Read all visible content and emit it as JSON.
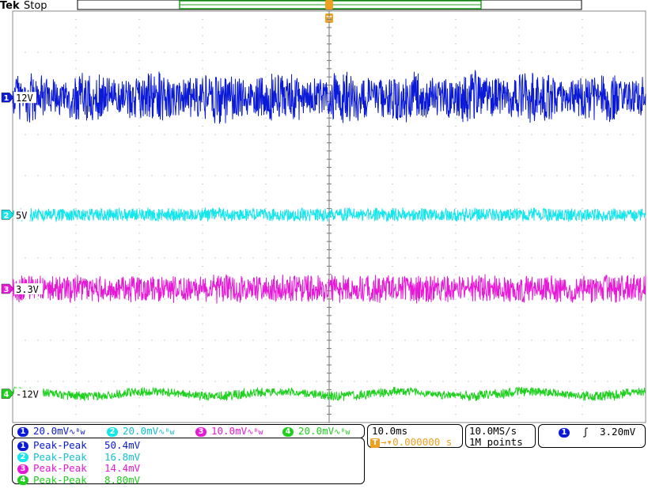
{
  "header": {
    "brand": "Tek",
    "status": "Stop"
  },
  "colors": {
    "ch1": "#0a1ad6",
    "ch2": "#14e6ec",
    "ch3": "#e619d7",
    "ch4": "#1fd01f",
    "trigger": "#f0a020"
  },
  "chart_data": {
    "type": "line",
    "title": "",
    "x_unit": "s",
    "xlim": [
      -0.05,
      0.05
    ],
    "grid": true,
    "series": [
      {
        "name": "12V",
        "channel": 1,
        "color": "#0a1ad6",
        "offset_div": 2.1,
        "volts_per_div": 0.02,
        "peak_to_peak_mV": 50.4,
        "ripple_hz": 100,
        "envelope_div": [
          1.0,
          1.4
        ]
      },
      {
        "name": "5V",
        "channel": 2,
        "color": "#14e6ec",
        "offset_div": 4.95,
        "volts_per_div": 0.02,
        "peak_to_peak_mV": 16.8,
        "ripple_hz": 0,
        "envelope_div": [
          0.36,
          0.36
        ]
      },
      {
        "name": "3.3V",
        "channel": 3,
        "color": "#e619d7",
        "offset_div": 6.75,
        "volts_per_div": 0.01,
        "peak_to_peak_mV": 14.4,
        "ripple_hz": 0,
        "envelope_div": [
          0.72,
          0.72
        ]
      },
      {
        "name": "-12V",
        "channel": 4,
        "color": "#1fd01f",
        "offset_div": 9.3,
        "volts_per_div": 0.02,
        "peak_to_peak_mV": 8.8,
        "ripple_hz": 50,
        "envelope_div": [
          0.22,
          0.28
        ]
      }
    ]
  },
  "channel_settings": [
    {
      "num": "1",
      "scale": "20.0mV",
      "bw": "∿ᴮw"
    },
    {
      "num": "2",
      "scale": "20.0mV",
      "bw": "∿ᴮw"
    },
    {
      "num": "3",
      "scale": "10.0mV",
      "bw": "∿ᴮw"
    },
    {
      "num": "4",
      "scale": "20.0mV",
      "bw": "∿ᴮw"
    }
  ],
  "measurements": [
    {
      "num": "1",
      "label": "Peak-Peak",
      "value": "50.4mV"
    },
    {
      "num": "2",
      "label": "Peak-Peak",
      "value": "16.8mV"
    },
    {
      "num": "3",
      "label": "Peak-Peak",
      "value": "14.4mV"
    },
    {
      "num": "4",
      "label": "Peak-Peak",
      "value": "8.80mV"
    }
  ],
  "timebase": {
    "scale": "10.0ms",
    "trigger_pos": "0.000000 s",
    "trigger_marker": "T"
  },
  "acquisition": {
    "rate": "10.0MS/s",
    "length": "1M points"
  },
  "trigger": {
    "channel": "1",
    "slope": "ʃ",
    "level": "3.20mV"
  }
}
